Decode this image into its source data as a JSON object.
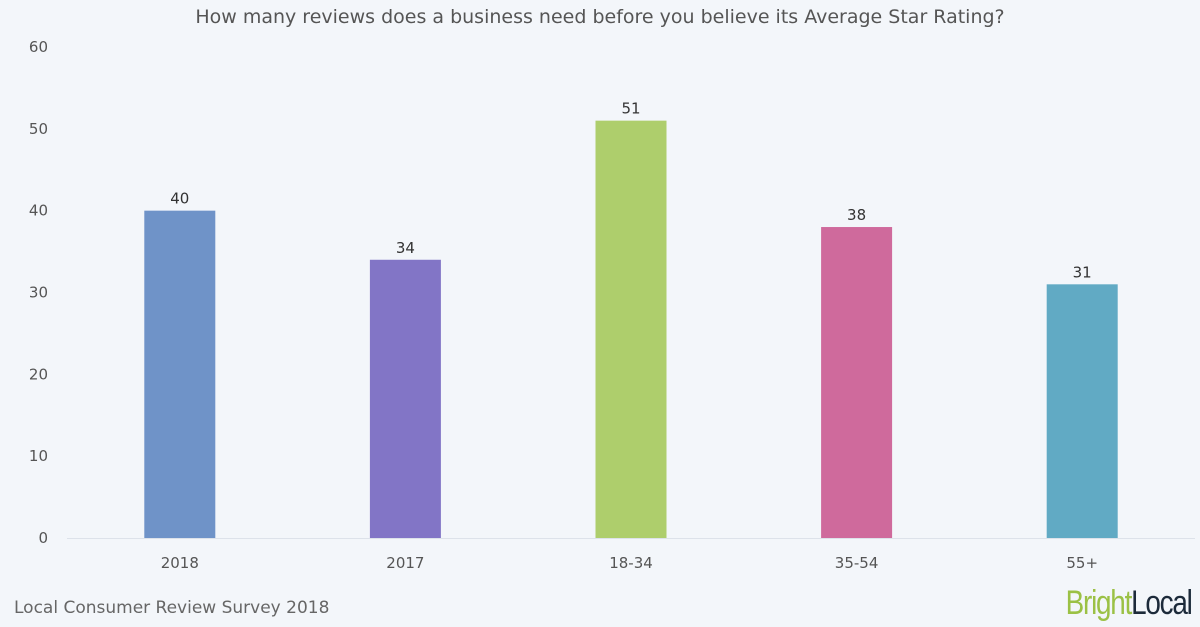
{
  "chart_data": {
    "type": "bar",
    "title": "How many reviews does a business need before you believe its Average Star Rating?",
    "categories": [
      "2018",
      "2017",
      "18-34",
      "35-54",
      "55+"
    ],
    "values": [
      40,
      34,
      51,
      38,
      31
    ],
    "colors": [
      "#6f93c8",
      "#8275c6",
      "#aece6c",
      "#cf6a9c",
      "#61aac4"
    ],
    "ylim": [
      0,
      60
    ],
    "yticks": [
      0,
      10,
      20,
      30,
      40,
      50,
      60
    ],
    "grid": false,
    "xlabel": "",
    "ylabel": ""
  },
  "footer": {
    "source": "Local Consumer Review Survey 2018",
    "logo_part1": "Bright",
    "logo_part2": "Local"
  }
}
